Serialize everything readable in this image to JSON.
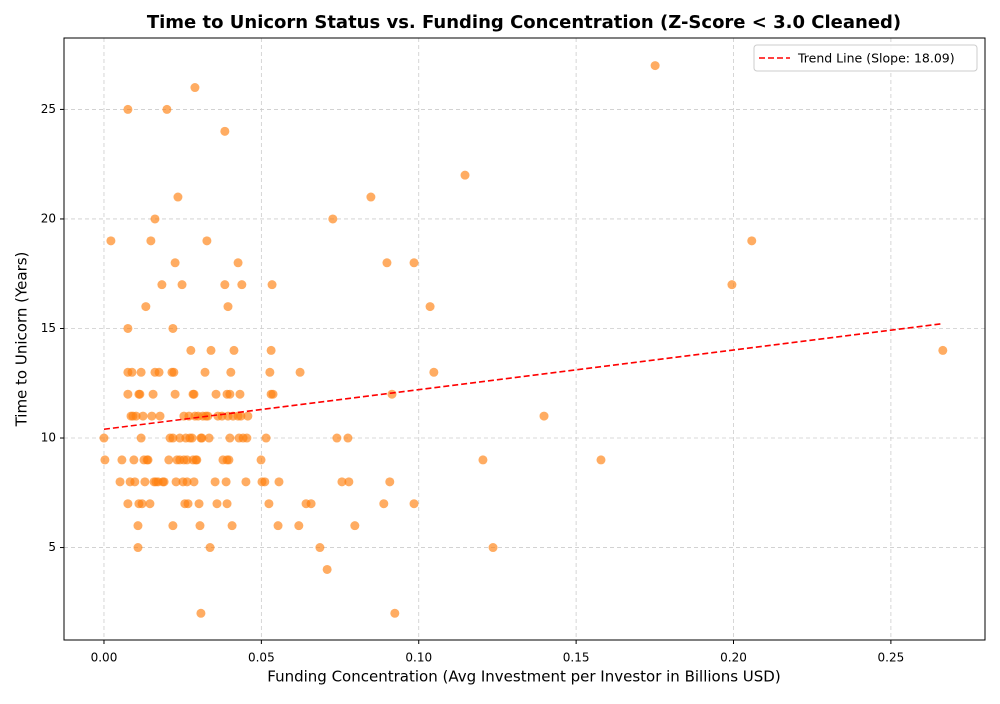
{
  "chart_data": {
    "type": "scatter",
    "title": "Time to Unicorn Status vs. Funding Concentration (Z-Score < 3.0 Cleaned)",
    "x_label": "Funding Concentration (Avg Investment per Investor in Billions USD)",
    "y_label": "Time to Unicorn (Years)",
    "color": "#ff7f0e",
    "alpha": 0.65,
    "grid": true,
    "legend": "upper right",
    "xlim": [
      -0.0127,
      0.2799
    ],
    "ylim": [
      0.78,
      28.26
    ],
    "xticks": [
      {
        "value": 0,
        "label": "0.00"
      },
      {
        "value": 0.05,
        "label": "0.05"
      },
      {
        "value": 0.1,
        "label": "0.10"
      },
      {
        "value": 0.15,
        "label": "0.15"
      },
      {
        "value": 0.2,
        "label": "0.20"
      },
      {
        "value": 0.25,
        "label": "0.25"
      }
    ],
    "yticks": [
      5,
      10,
      15,
      20,
      25
    ],
    "x": [
      0.0,
      0.0003,
      0.0022,
      0.0057,
      0.0051,
      0.0076,
      0.0076,
      0.0076,
      0.0076,
      0.0076,
      0.0083,
      0.0086,
      0.0089,
      0.0092,
      0.0095,
      0.0098,
      0.0102,
      0.0108,
      0.0108,
      0.0111,
      0.0111,
      0.0114,
      0.0118,
      0.0118,
      0.0121,
      0.0124,
      0.0127,
      0.013,
      0.0133,
      0.0137,
      0.014,
      0.0146,
      0.0149,
      0.0152,
      0.0156,
      0.0159,
      0.0162,
      0.0162,
      0.0165,
      0.0172,
      0.0175,
      0.0178,
      0.0184,
      0.0187,
      0.0191,
      0.02,
      0.0206,
      0.021,
      0.0216,
      0.0219,
      0.0219,
      0.0219,
      0.0222,
      0.0226,
      0.0226,
      0.0229,
      0.0232,
      0.0235,
      0.0241,
      0.0241,
      0.0248,
      0.0251,
      0.0254,
      0.0254,
      0.0257,
      0.026,
      0.0264,
      0.0264,
      0.0267,
      0.027,
      0.0273,
      0.0276,
      0.028,
      0.0283,
      0.0283,
      0.0286,
      0.0286,
      0.0289,
      0.0289,
      0.0292,
      0.0295,
      0.0299,
      0.0302,
      0.0305,
      0.0308,
      0.0308,
      0.0311,
      0.0314,
      0.0321,
      0.0324,
      0.0327,
      0.033,
      0.0334,
      0.0337,
      0.034,
      0.0353,
      0.0356,
      0.0359,
      0.0362,
      0.0375,
      0.0378,
      0.0384,
      0.0384,
      0.0388,
      0.0391,
      0.0391,
      0.0391,
      0.0394,
      0.0394,
      0.0397,
      0.04,
      0.04,
      0.0403,
      0.0407,
      0.041,
      0.0413,
      0.0426,
      0.0426,
      0.0429,
      0.0432,
      0.0435,
      0.0438,
      0.0442,
      0.0451,
      0.0454,
      0.0457,
      0.0499,
      0.0502,
      0.0511,
      0.0515,
      0.0524,
      0.0527,
      0.0531,
      0.0531,
      0.0534,
      0.0537,
      0.0553,
      0.0556,
      0.0619,
      0.0623,
      0.0642,
      0.0658,
      0.0686,
      0.0709,
      0.0727,
      0.074,
      0.0756,
      0.0775,
      0.0778,
      0.0797,
      0.0848,
      0.0889,
      0.0899,
      0.0908,
      0.0915,
      0.0924,
      0.0985,
      0.0985,
      0.1036,
      0.1048,
      0.1147,
      0.1204,
      0.1236,
      0.1398,
      0.1579,
      0.1751,
      0.1995,
      0.2058,
      0.2665
    ],
    "values": [
      10,
      9,
      19,
      9,
      8,
      25,
      15,
      13,
      12,
      7,
      8,
      11,
      13,
      11,
      9,
      8,
      11,
      6,
      5,
      12,
      7,
      12,
      10,
      13,
      7,
      11,
      9,
      8,
      16,
      9,
      9,
      7,
      19,
      11,
      12,
      8,
      20,
      13,
      8,
      8,
      13,
      11,
      17,
      8,
      8,
      25,
      9,
      10,
      13,
      10,
      15,
      6,
      13,
      18,
      12,
      8,
      9,
      21,
      10,
      9,
      17,
      8,
      11,
      9,
      7,
      10,
      8,
      9,
      7,
      11,
      10,
      14,
      10,
      12,
      9,
      8,
      12,
      26,
      11,
      9,
      9,
      11,
      7,
      6,
      2,
      10,
      10,
      11,
      13,
      11,
      19,
      11,
      10,
      5,
      14,
      8,
      12,
      7,
      11,
      11,
      9,
      24,
      17,
      8,
      7,
      12,
      9,
      16,
      11,
      9,
      12,
      10,
      13,
      6,
      11,
      14,
      18,
      11,
      10,
      12,
      11,
      17,
      10,
      8,
      10,
      11,
      9,
      8,
      8,
      10,
      7,
      13,
      12,
      14,
      17,
      12,
      6,
      8,
      6,
      13,
      7,
      7,
      5,
      4,
      20,
      10,
      8,
      10,
      8,
      6,
      21,
      7,
      18,
      8,
      12,
      2,
      18,
      7,
      16,
      13,
      22,
      9,
      5,
      11,
      9,
      27,
      17,
      19,
      14
    ],
    "trend_line": {
      "name": "Trend Line (Slope: 18.09)",
      "color": "#ff0000",
      "x": [
        0.0,
        0.2665
      ],
      "values": [
        10.4,
        15.22
      ]
    }
  }
}
